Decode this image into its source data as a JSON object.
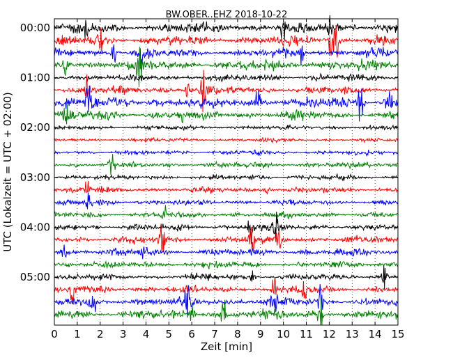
{
  "chart_data": {
    "type": "line",
    "title": "BW.OBER..EHZ 2018-10-22",
    "xlabel": "Zeit  [min]",
    "ylabel": "UTC (Lokalzeit = UTC + 02:00)",
    "xlim": [
      0,
      15
    ],
    "x_ticks": [
      0,
      1,
      2,
      3,
      4,
      5,
      6,
      7,
      8,
      9,
      10,
      11,
      12,
      13,
      14,
      15
    ],
    "y_ticks": [
      "00:00",
      "01:00",
      "02:00",
      "03:00",
      "04:00",
      "05:00"
    ],
    "grid": true,
    "trace_interval_minutes": 15,
    "trace_count": 24,
    "trace_colors": [
      "#000000",
      "#ff0000",
      "#0000ff",
      "#008000"
    ],
    "trace_start_times": [
      "00:00",
      "00:15",
      "00:30",
      "00:45",
      "01:00",
      "01:15",
      "01:30",
      "01:45",
      "02:00",
      "02:15",
      "02:30",
      "02:45",
      "03:00",
      "03:15",
      "03:30",
      "03:45",
      "04:00",
      "04:15",
      "04:30",
      "04:45",
      "05:00",
      "05:15",
      "05:30",
      "05:45"
    ],
    "trace_activity": [
      1.6,
      1.5,
      1.3,
      1.5,
      1.1,
      1.2,
      1.7,
      1.4,
      0.7,
      0.6,
      0.7,
      0.9,
      0.8,
      0.9,
      0.9,
      0.9,
      1.0,
      1.1,
      1.1,
      1.0,
      1.0,
      1.1,
      1.3,
      1.4
    ],
    "events": [
      {
        "trace": 0,
        "minute": 1.4,
        "amp": 0.5
      },
      {
        "trace": 0,
        "minute": 10.0,
        "amp": 0.8
      },
      {
        "trace": 0,
        "minute": 12.0,
        "amp": 0.5
      },
      {
        "trace": 1,
        "minute": 2.0,
        "amp": 0.9
      },
      {
        "trace": 1,
        "minute": 12.1,
        "amp": 1.2
      },
      {
        "trace": 1,
        "minute": 12.3,
        "amp": 1.0
      },
      {
        "trace": 2,
        "minute": 3.8,
        "amp": 1.0
      },
      {
        "trace": 2,
        "minute": 2.6,
        "amp": 0.6
      },
      {
        "trace": 2,
        "minute": 10.8,
        "amp": 0.7
      },
      {
        "trace": 3,
        "minute": 3.7,
        "amp": 1.1
      },
      {
        "trace": 3,
        "minute": 0.5,
        "amp": 0.5
      },
      {
        "trace": 5,
        "minute": 6.5,
        "amp": 1.1
      },
      {
        "trace": 5,
        "minute": 5.8,
        "amp": 0.7
      },
      {
        "trace": 5,
        "minute": 1.4,
        "amp": 0.6
      },
      {
        "trace": 6,
        "minute": 13.4,
        "amp": 1.3
      },
      {
        "trace": 6,
        "minute": 1.5,
        "amp": 0.7
      },
      {
        "trace": 6,
        "minute": 8.9,
        "amp": 0.6
      },
      {
        "trace": 6,
        "minute": 14.6,
        "amp": 0.8
      },
      {
        "trace": 7,
        "minute": 0.5,
        "amp": 0.6
      },
      {
        "trace": 7,
        "minute": 5.6,
        "amp": 0.5
      },
      {
        "trace": 11,
        "minute": 2.5,
        "amp": 0.6
      },
      {
        "trace": 13,
        "minute": 1.4,
        "amp": 0.5
      },
      {
        "trace": 13,
        "minute": 9.3,
        "amp": 0.4
      },
      {
        "trace": 14,
        "minute": 1.5,
        "amp": 0.6
      },
      {
        "trace": 15,
        "minute": 4.8,
        "amp": 0.7
      },
      {
        "trace": 16,
        "minute": 8.6,
        "amp": 0.8
      },
      {
        "trace": 16,
        "minute": 9.7,
        "amp": 0.6
      },
      {
        "trace": 17,
        "minute": 4.7,
        "amp": 1.0
      },
      {
        "trace": 17,
        "minute": 8.6,
        "amp": 0.8
      },
      {
        "trace": 17,
        "minute": 9.8,
        "amp": 0.9
      },
      {
        "trace": 18,
        "minute": 0.4,
        "amp": 0.7
      },
      {
        "trace": 18,
        "minute": 3.9,
        "amp": 0.5
      },
      {
        "trace": 20,
        "minute": 8.7,
        "amp": 0.5
      },
      {
        "trace": 20,
        "minute": 14.4,
        "amp": 0.7
      },
      {
        "trace": 21,
        "minute": 0.8,
        "amp": 0.7
      },
      {
        "trace": 21,
        "minute": 9.6,
        "amp": 0.8
      },
      {
        "trace": 21,
        "minute": 10.9,
        "amp": 0.6
      },
      {
        "trace": 22,
        "minute": 5.8,
        "amp": 0.9
      },
      {
        "trace": 22,
        "minute": 9.6,
        "amp": 1.1
      },
      {
        "trace": 22,
        "minute": 11.6,
        "amp": 0.9
      },
      {
        "trace": 22,
        "minute": 1.7,
        "amp": 0.6
      },
      {
        "trace": 23,
        "minute": 7.4,
        "amp": 0.9
      },
      {
        "trace": 23,
        "minute": 11.6,
        "amp": 1.1
      },
      {
        "trace": 23,
        "minute": 6.0,
        "amp": 0.6
      }
    ]
  }
}
